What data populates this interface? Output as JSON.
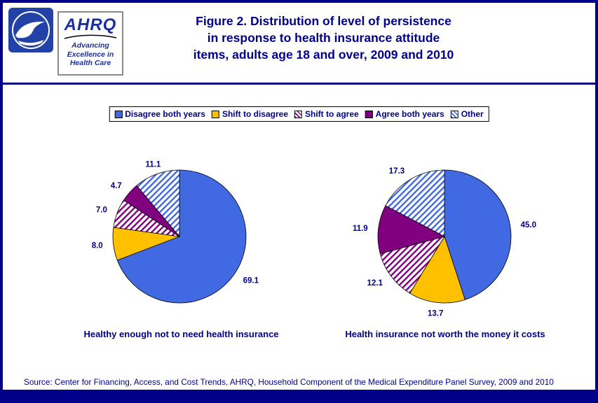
{
  "header": {
    "title_lines": [
      "Figure 2. Distribution of level of persistence",
      "in response to health insurance attitude",
      "items, adults age 18 and over, 2009 and 2010"
    ],
    "ahrq": {
      "name": "AHRQ",
      "tagline": [
        "Advancing",
        "Excellence in",
        "Health Care"
      ]
    }
  },
  "legend": {
    "items": [
      {
        "label": "Disagree both years",
        "fill": "solid",
        "color": "#4169E1"
      },
      {
        "label": "Shift to disagree",
        "fill": "solid",
        "color": "#FFC000"
      },
      {
        "label": "Shift to agree",
        "fill": "hatch",
        "color": "#800080"
      },
      {
        "label": "Agree both years",
        "fill": "solid",
        "color": "#800080"
      },
      {
        "label": "Other",
        "fill": "hatch",
        "color": "#4169E1"
      }
    ]
  },
  "chart_data": [
    {
      "type": "pie",
      "title": "Healthy enough not to need health insurance",
      "categories": [
        "Disagree both years",
        "Shift to disagree",
        "Shift to agree",
        "Agree both years",
        "Other"
      ],
      "values": [
        69.1,
        8.0,
        7.0,
        4.7,
        11.1
      ],
      "start_angle_deg": 0,
      "direction": "clockwise",
      "legend_position": "top"
    },
    {
      "type": "pie",
      "title": "Health insurance not worth the money it costs",
      "categories": [
        "Disagree both years",
        "Shift to disagree",
        "Shift to agree",
        "Agree both years",
        "Other"
      ],
      "values": [
        45.0,
        13.7,
        12.1,
        11.9,
        17.3
      ],
      "start_angle_deg": 0,
      "direction": "clockwise",
      "legend_position": "top"
    }
  ],
  "source": {
    "text": "Source: Center for Financing, Access, and Cost Trends, AHRQ, Household Component of the Medical Expenditure Panel Survey, 2009 and 2010"
  },
  "colors": {
    "navy": "#00008B",
    "blue": "#4169E1",
    "gold": "#FFC000",
    "purple": "#800080"
  }
}
